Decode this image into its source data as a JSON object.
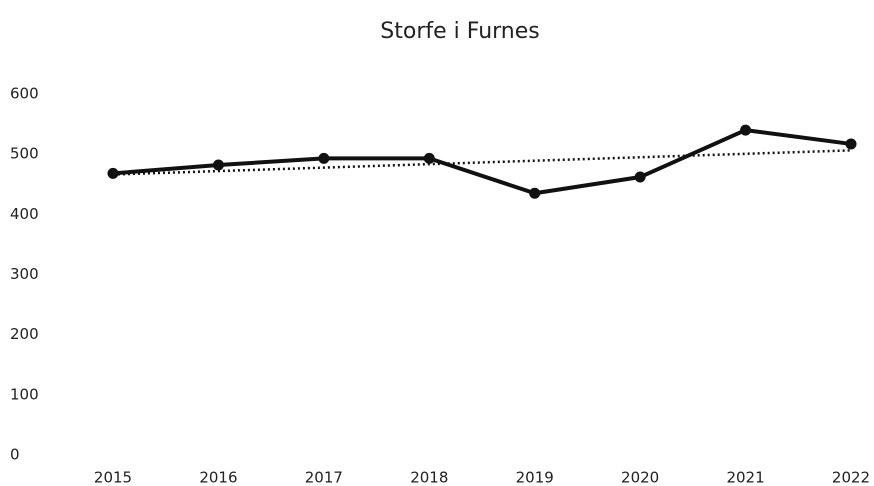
{
  "chart_data": {
    "type": "line",
    "title": "Storfe i Furnes",
    "categories": [
      "2015",
      "2016",
      "2017",
      "2018",
      "2019",
      "2020",
      "2021",
      "2022"
    ],
    "values": [
      468,
      482,
      493,
      493,
      435,
      462,
      540,
      517
    ],
    "color": "#111111",
    "ylim": [
      0,
      600
    ],
    "yticks": [
      0,
      100,
      200,
      300,
      400,
      500,
      600
    ],
    "grid": false,
    "trendline": true
  }
}
